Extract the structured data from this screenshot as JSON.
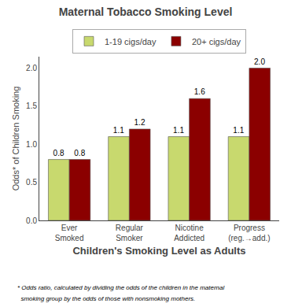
{
  "chart_data": {
    "type": "bar",
    "title": "Maternal Tobacco Smoking Level",
    "xlabel": "Children's Smoking Level as Adults",
    "ylabel": "Odds* of Children Smoking",
    "annotations": [
      "* Odds ratio, calculated by dividing the odds of the children in the maternal",
      "  smoking group by the odds of those with nonsmoking mothers."
    ],
    "categories": [
      "Ever\nSmoked",
      "Regular\nSmoker",
      "Nicotine\nAddicted",
      "Progress\n(reg.→add.)"
    ],
    "series": [
      {
        "name": "1-19 cigs/day",
        "color": "#c8d96e",
        "values": [
          0.8,
          1.1,
          1.1,
          1.1
        ],
        "value_labels": [
          "0.8",
          "1.1",
          "1.1",
          "1.1"
        ]
      },
      {
        "name": "20+ cigs/day",
        "color": "#8b0000",
        "values": [
          0.8,
          1.2,
          1.6,
          2.0
        ],
        "value_labels": [
          "0.8",
          "1.2",
          "1.6",
          "2.0"
        ]
      }
    ],
    "ylim": [
      0,
      2.15
    ],
    "yticks": [
      {
        "value": 0,
        "label": "0.0"
      },
      0.5,
      {
        "value": 1,
        "label": "1.0"
      },
      1.5,
      {
        "value": 2,
        "label": "2.0"
      }
    ],
    "data_labels": true,
    "grid": false,
    "legend": "top"
  }
}
